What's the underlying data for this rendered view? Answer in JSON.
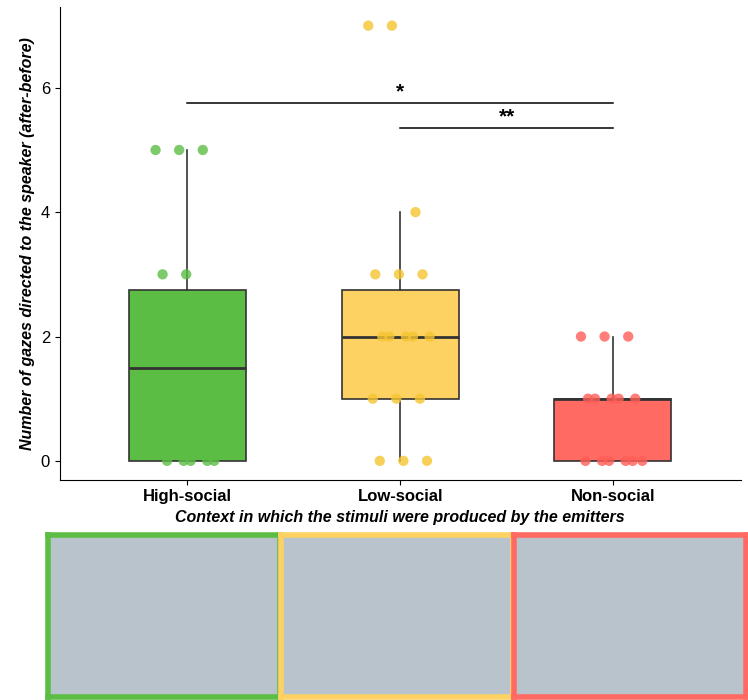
{
  "chart_data": {
    "type": "box",
    "categories": [
      "High-social",
      "Low-social",
      "Non-social"
    ],
    "colors": [
      "#5cbd45",
      "#fdd262",
      "#ff6b63"
    ],
    "point_colors": [
      "#5cbd45",
      "#f5c531",
      "#ff5e57"
    ],
    "points": [
      [
        5,
        5,
        5,
        3,
        3,
        2,
        2,
        2,
        2,
        1,
        1,
        1,
        0,
        0,
        0,
        0,
        0
      ],
      [
        7,
        7,
        4,
        3,
        3,
        3,
        2,
        2,
        2,
        2,
        2,
        1,
        1,
        1,
        0,
        0,
        0
      ],
      [
        2,
        2,
        2,
        1,
        1,
        1,
        1,
        1,
        0,
        0,
        0,
        0,
        0,
        0
      ]
    ],
    "boxes": [
      {
        "q1": 0,
        "median": 1.5,
        "q3": 2.75,
        "whisker_low": 0,
        "whisker_high": 5
      },
      {
        "q1": 1,
        "median": 2,
        "q3": 2.75,
        "whisker_low": 0,
        "whisker_high": 4
      },
      {
        "q1": 0,
        "median": 1,
        "q3": 1,
        "whisker_low": 0,
        "whisker_high": 2
      }
    ],
    "x_label": "Context in which the stimuli were produced by the emitters",
    "y_label": "Number of gazes directed to the speaker (after-before)",
    "ylim": [
      -0.3,
      7.3
    ],
    "yticks": [
      0,
      2,
      4,
      6
    ],
    "annotations": [
      {
        "text": "*",
        "from": "High-social",
        "to": "Non-social",
        "y": 5.75
      },
      {
        "text": "**",
        "from": "Low-social",
        "to": "Non-social",
        "y": 5.35
      }
    ]
  }
}
